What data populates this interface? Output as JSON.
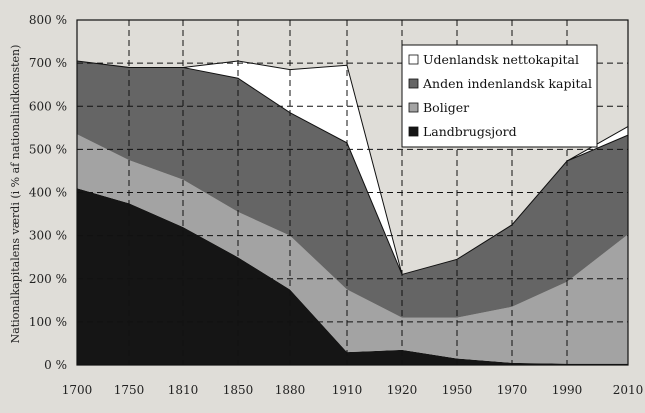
{
  "chart_data": {
    "type": "area",
    "stacked": true,
    "x": [
      1700,
      1750,
      1810,
      1850,
      1880,
      1910,
      1920,
      1950,
      1970,
      1990,
      2010
    ],
    "series": [
      {
        "name": "Landbrugsjord",
        "values": [
          410,
          375,
          320,
          250,
          175,
          30,
          35,
          15,
          5,
          3,
          3
        ],
        "color": "#151515"
      },
      {
        "name": "Boliger",
        "values": [
          125,
          100,
          110,
          105,
          125,
          145,
          75,
          95,
          130,
          190,
          300
        ],
        "color": "#a3a3a3"
      },
      {
        "name": "Anden indenlandsk kapital",
        "values": [
          170,
          215,
          260,
          310,
          285,
          340,
          100,
          135,
          190,
          280,
          230
        ],
        "color": "#656565"
      },
      {
        "name": "Udenlandsk nettokapital",
        "values": [
          0,
          0,
          0,
          40,
          100,
          180,
          0,
          0,
          0,
          0,
          20
        ],
        "color": "#ffffff"
      }
    ],
    "ylabel": "Nationalkapitalens værdi (i % af nationalindkomsten)",
    "xlabel": "",
    "ylim": [
      0,
      800
    ],
    "yticks": [
      0,
      100,
      200,
      300,
      400,
      500,
      600,
      700,
      800
    ],
    "ytick_suffix": " %",
    "xtick_labels": [
      "1700",
      "1750",
      "1810",
      "1850",
      "1880",
      "1910",
      "1920",
      "1950",
      "1970",
      "1990",
      "2010"
    ],
    "grid": "dashed",
    "legend_position": "top-right"
  }
}
